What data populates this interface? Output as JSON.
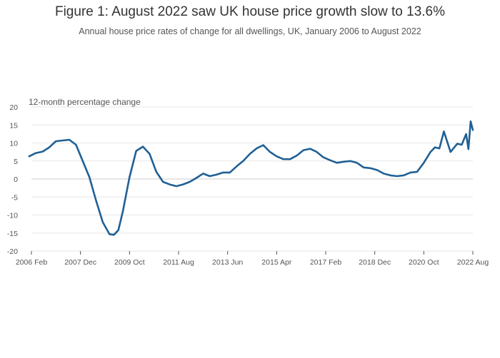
{
  "title": "Figure 1: August 2022 saw UK house price growth slow to 13.6%",
  "subtitle": "Annual house price rates of change for all dwellings, UK, January 2006 to August 2022",
  "chart_data": {
    "type": "line",
    "title": "Figure 1: August 2022 saw UK house price growth slow to 13.6%",
    "subtitle": "Annual house price rates of change for all dwellings, UK, January 2006 to August 2022",
    "ylabel": "12-month percentage change",
    "xlabel": "",
    "ylim": [
      -20,
      20
    ],
    "yticks": [
      20,
      15,
      10,
      5,
      0,
      -5,
      -10,
      -15,
      -20
    ],
    "xlim": [
      "2006-02",
      "2022-08"
    ],
    "xticks": [
      {
        "date": "2006-02",
        "label": "2006 Feb"
      },
      {
        "date": "2007-12",
        "label": "2007 Dec"
      },
      {
        "date": "2009-10",
        "label": "2009 Oct"
      },
      {
        "date": "2011-08",
        "label": "2011 Aug"
      },
      {
        "date": "2013-06",
        "label": "2013 Jun"
      },
      {
        "date": "2015-04",
        "label": "2015 Apr"
      },
      {
        "date": "2017-02",
        "label": "2017 Feb"
      },
      {
        "date": "2018-12",
        "label": "2018 Dec"
      },
      {
        "date": "2020-10",
        "label": "2020 Oct"
      },
      {
        "date": "2022-08",
        "label": "2022 Aug"
      }
    ],
    "grid": true,
    "color": "#206095",
    "series": [
      {
        "x": [
          "2006-01",
          "2006-04",
          "2006-07",
          "2006-10",
          "2007-01",
          "2007-04",
          "2007-07",
          "2007-10",
          "2008-01",
          "2008-04",
          "2008-07",
          "2008-10",
          "2009-01",
          "2009-03",
          "2009-05",
          "2009-07",
          "2009-10",
          "2010-01",
          "2010-04",
          "2010-07",
          "2010-10",
          "2011-01",
          "2011-04",
          "2011-07",
          "2011-10",
          "2012-01",
          "2012-04",
          "2012-07",
          "2012-10",
          "2013-01",
          "2013-04",
          "2013-07",
          "2013-10",
          "2014-01",
          "2014-04",
          "2014-07",
          "2014-10",
          "2015-01",
          "2015-04",
          "2015-07",
          "2015-10",
          "2016-01",
          "2016-04",
          "2016-07",
          "2016-10",
          "2017-01",
          "2017-04",
          "2017-07",
          "2017-10",
          "2018-01",
          "2018-04",
          "2018-07",
          "2018-10",
          "2019-01",
          "2019-04",
          "2019-07",
          "2019-10",
          "2020-01",
          "2020-04",
          "2020-07",
          "2020-10",
          "2021-01",
          "2021-03",
          "2021-05",
          "2021-07",
          "2021-10",
          "2022-01",
          "2022-03",
          "2022-05",
          "2022-06",
          "2022-07",
          "2022-08"
        ],
        "values": [
          6.3,
          7.2,
          7.6,
          8.8,
          10.5,
          10.7,
          10.9,
          9.5,
          5.0,
          0.5,
          -6.0,
          -12.0,
          -15.3,
          -15.5,
          -14.2,
          -9.0,
          0.5,
          7.8,
          9.0,
          7.0,
          2.0,
          -0.8,
          -1.5,
          -2.0,
          -1.5,
          -0.8,
          0.3,
          1.5,
          0.8,
          1.2,
          1.8,
          1.8,
          3.5,
          5.0,
          7.0,
          8.5,
          9.4,
          7.5,
          6.3,
          5.5,
          5.5,
          6.5,
          8.0,
          8.4,
          7.5,
          6.0,
          5.2,
          4.5,
          4.8,
          5.0,
          4.5,
          3.2,
          3.0,
          2.5,
          1.5,
          1.0,
          0.8,
          1.0,
          1.8,
          2.0,
          4.5,
          7.5,
          8.8,
          8.5,
          13.2,
          7.5,
          9.8,
          9.5,
          12.5,
          8.3,
          16.0,
          13.6
        ]
      }
    ]
  }
}
